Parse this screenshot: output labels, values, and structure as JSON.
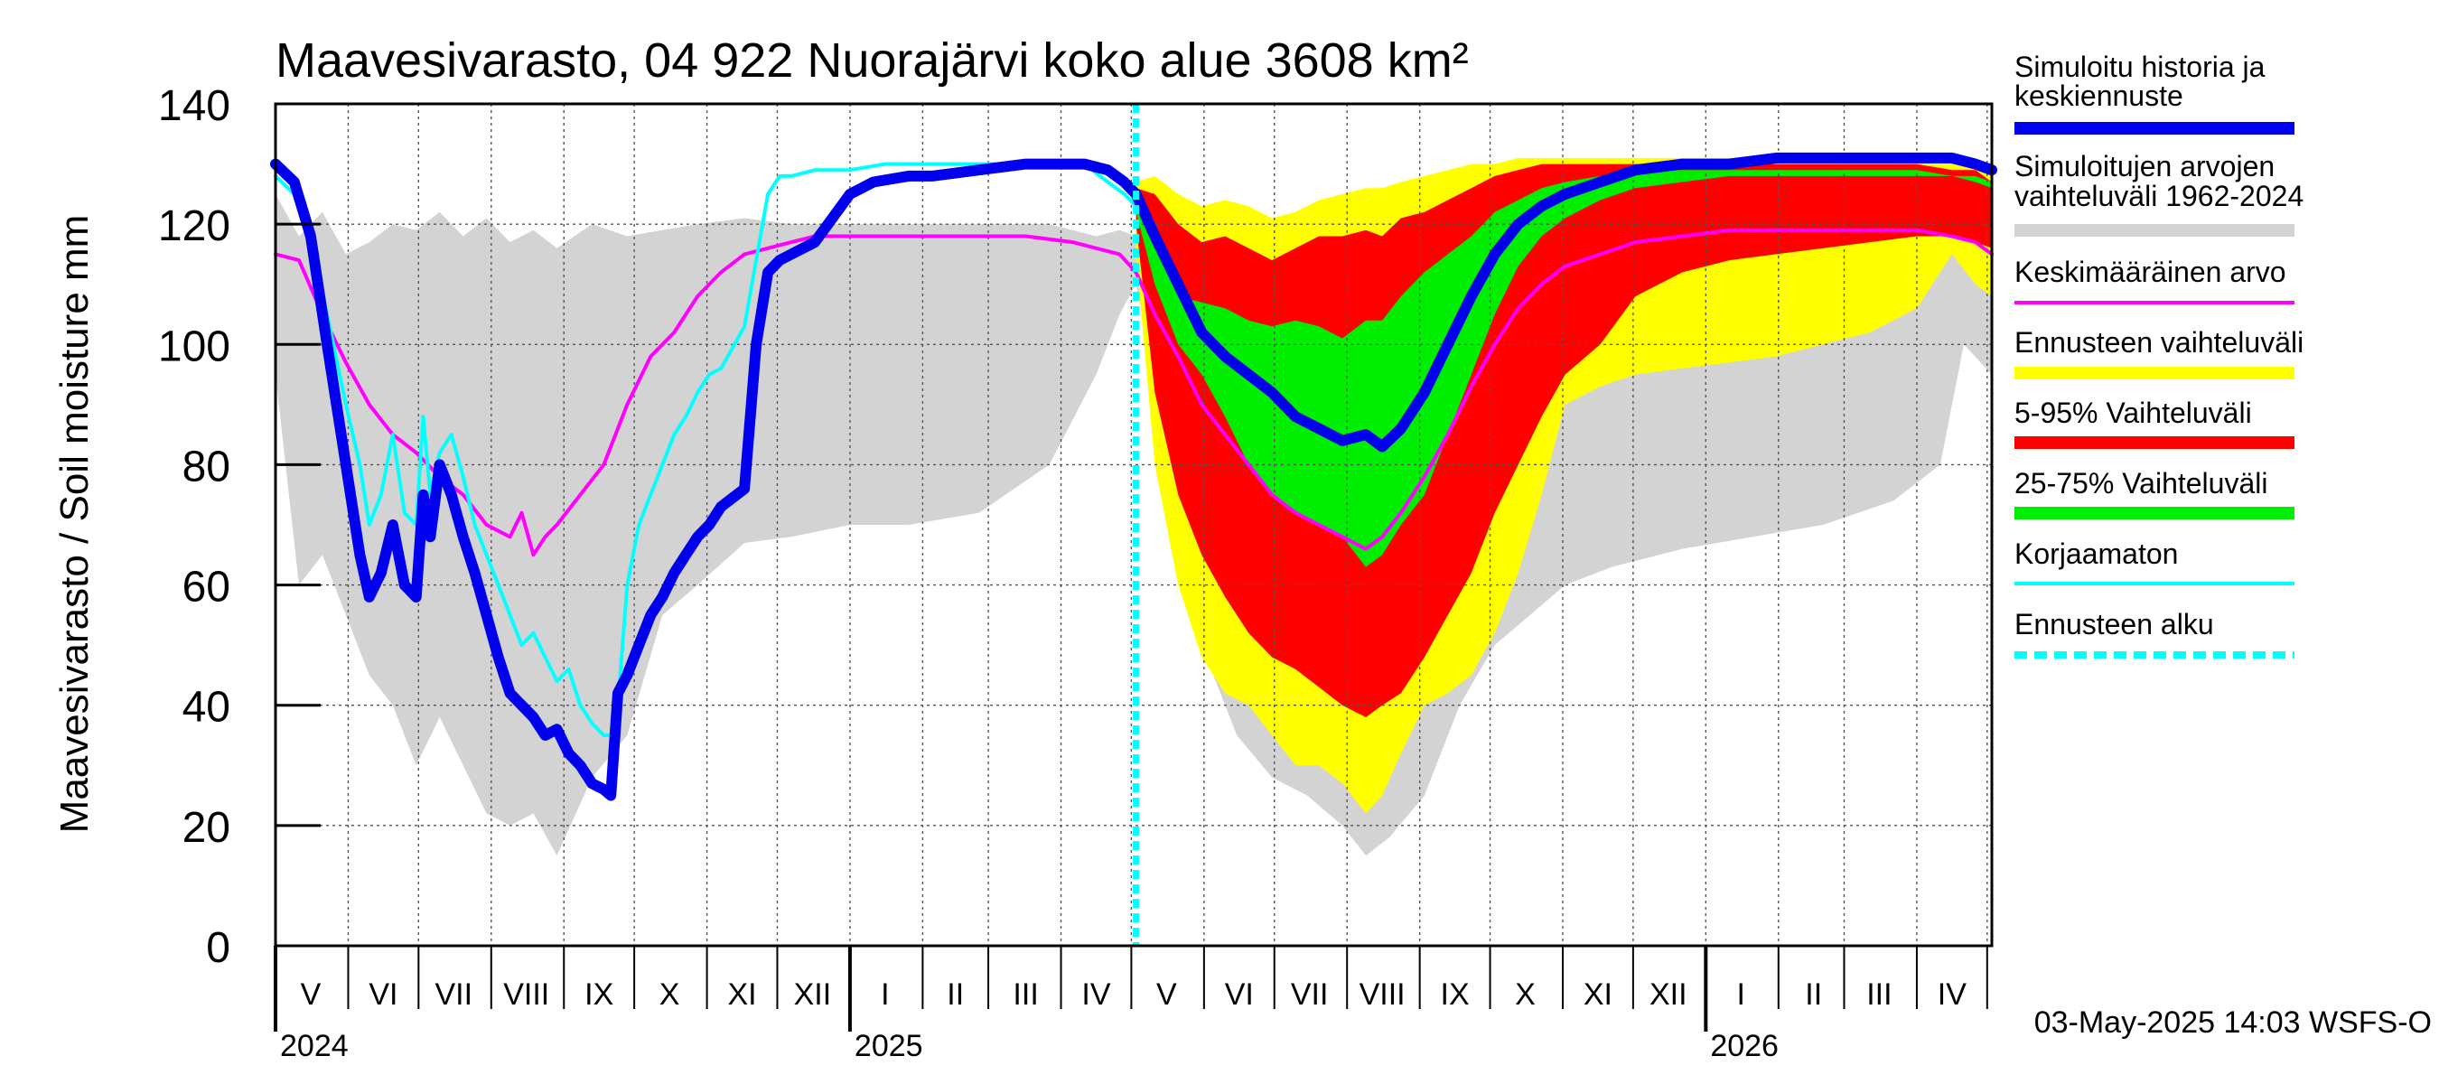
{
  "chart_data": {
    "type": "area",
    "title": "Maavesivarasto, 04 922 Nuorajärvi koko alue 3608 km²",
    "ylabel": "Maavesivarasto / Soil moisture   mm",
    "xlabel": "",
    "ylim": [
      0,
      140
    ],
    "yticks": [
      "0",
      "20",
      "40",
      "60",
      "80",
      "100",
      "120",
      "140"
    ],
    "x_range_days": [
      0,
      732
    ],
    "forecast_start_day": 367,
    "month_labels": [
      {
        "label": "V",
        "day": 15
      },
      {
        "label": "VI",
        "day": 46
      },
      {
        "label": "VII",
        "day": 76
      },
      {
        "label": "VIII",
        "day": 107
      },
      {
        "label": "IX",
        "day": 138
      },
      {
        "label": "X",
        "day": 168
      },
      {
        "label": "XI",
        "day": 199
      },
      {
        "label": "XII",
        "day": 229
      },
      {
        "label": "I",
        "day": 260
      },
      {
        "label": "II",
        "day": 290
      },
      {
        "label": "III",
        "day": 320
      },
      {
        "label": "IV",
        "day": 350
      },
      {
        "label": "V",
        "day": 380
      },
      {
        "label": "VI",
        "day": 411
      },
      {
        "label": "VII",
        "day": 441
      },
      {
        "label": "VIII",
        "day": 472
      },
      {
        "label": "IX",
        "day": 503
      },
      {
        "label": "X",
        "day": 533
      },
      {
        "label": "XI",
        "day": 564
      },
      {
        "label": "XII",
        "day": 594
      },
      {
        "label": "I",
        "day": 625
      },
      {
        "label": "II",
        "day": 656
      },
      {
        "label": "III",
        "day": 684
      },
      {
        "label": "IV",
        "day": 715
      }
    ],
    "month_boundaries": [
      0,
      31,
      61,
      92,
      123,
      153,
      184,
      214,
      245,
      276,
      304,
      335,
      365,
      396,
      426,
      457,
      488,
      518,
      549,
      579,
      610,
      641,
      669,
      700,
      730
    ],
    "year_boundaries": [
      {
        "label": "2024",
        "day": 0
      },
      {
        "label": "2025",
        "day": 245
      },
      {
        "label": "2026",
        "day": 610
      }
    ],
    "series": [
      {
        "name": "Simuloitujen arvojen vaihteluväli 1962-2024",
        "kind": "band",
        "color": "#d3d3d3",
        "x": [
          0,
          10,
          20,
          30,
          40,
          50,
          60,
          70,
          80,
          90,
          100,
          110,
          120,
          135,
          150,
          165,
          180,
          200,
          220,
          245,
          270,
          300,
          330,
          350,
          360,
          367,
          380,
          395,
          410,
          425,
          440,
          455,
          465,
          475,
          490,
          505,
          520,
          535,
          550,
          570,
          600,
          630,
          660,
          690,
          710,
          720,
          732
        ],
        "lower": [
          95,
          60,
          65,
          55,
          45,
          40,
          30,
          38,
          30,
          22,
          20,
          22,
          15,
          28,
          35,
          55,
          60,
          67,
          68,
          70,
          70,
          72,
          80,
          95,
          105,
          110,
          85,
          50,
          35,
          28,
          25,
          20,
          15,
          18,
          25,
          40,
          50,
          55,
          60,
          63,
          66,
          68,
          70,
          74,
          80,
          100,
          95
        ],
        "upper": [
          125,
          118,
          122,
          115,
          117,
          120,
          119,
          122,
          118,
          121,
          117,
          119,
          116,
          120,
          118,
          119,
          120,
          121,
          120,
          120,
          120,
          120,
          120,
          118,
          119,
          118,
          120,
          118,
          119,
          120,
          118,
          119,
          120,
          119,
          121,
          120,
          119,
          120,
          120,
          121,
          121,
          121,
          121,
          121,
          120,
          121,
          120
        ]
      },
      {
        "name": "Ennusteen vaihteluväli",
        "kind": "band",
        "color": "#ffff00",
        "x": [
          367,
          375,
          385,
          395,
          405,
          415,
          425,
          435,
          445,
          455,
          465,
          472,
          480,
          490,
          500,
          510,
          520,
          530,
          540,
          550,
          565,
          580,
          600,
          620,
          640,
          660,
          680,
          700,
          715,
          725,
          732
        ],
        "lower": [
          115,
          80,
          60,
          48,
          42,
          40,
          35,
          30,
          30,
          27,
          22,
          25,
          32,
          40,
          42,
          45,
          52,
          62,
          75,
          90,
          93,
          95,
          96,
          97,
          98,
          100,
          102,
          106,
          115,
          110,
          108
        ],
        "upper": [
          127,
          128,
          125,
          123,
          124,
          123,
          121,
          122,
          124,
          125,
          126,
          126,
          127,
          128,
          129,
          130,
          130,
          131,
          131,
          131,
          131,
          131,
          131,
          131,
          131,
          131,
          131,
          131,
          131,
          130,
          129
        ]
      },
      {
        "name": "5-95% Vaihteluväli",
        "kind": "band",
        "color": "#ff0000",
        "x": [
          367,
          375,
          385,
          395,
          405,
          415,
          425,
          435,
          445,
          455,
          465,
          472,
          480,
          490,
          500,
          510,
          520,
          530,
          540,
          550,
          565,
          580,
          600,
          620,
          640,
          660,
          680,
          700,
          715,
          725,
          732
        ],
        "lower": [
          120,
          92,
          75,
          65,
          58,
          52,
          48,
          46,
          43,
          40,
          38,
          40,
          42,
          48,
          55,
          62,
          72,
          80,
          88,
          95,
          100,
          108,
          112,
          114,
          115,
          116,
          117,
          118,
          118,
          117,
          116
        ],
        "upper": [
          126,
          125,
          120,
          117,
          118,
          116,
          114,
          116,
          118,
          118,
          119,
          118,
          121,
          122,
          124,
          126,
          128,
          129,
          130,
          130,
          130,
          130,
          130,
          130,
          130,
          130,
          130,
          130,
          129,
          129,
          127
        ]
      },
      {
        "name": "25-75% Vaihteluväli",
        "kind": "band",
        "color": "#00ee00",
        "x": [
          367,
          375,
          385,
          395,
          405,
          415,
          425,
          435,
          445,
          455,
          465,
          472,
          480,
          490,
          500,
          510,
          520,
          530,
          540,
          550,
          565,
          580,
          600,
          620,
          640,
          660,
          680,
          700,
          715,
          725,
          732
        ],
        "lower": [
          122,
          110,
          100,
          95,
          88,
          80,
          75,
          72,
          70,
          68,
          63,
          65,
          70,
          75,
          85,
          95,
          105,
          113,
          118,
          121,
          124,
          126,
          127,
          128,
          128,
          128,
          128,
          128,
          128,
          127,
          126
        ],
        "upper": [
          125,
          118,
          108,
          107,
          106,
          104,
          103,
          104,
          103,
          101,
          104,
          104,
          108,
          112,
          115,
          118,
          122,
          124,
          126,
          127,
          128,
          129,
          129,
          129,
          129,
          129,
          129,
          129,
          128,
          128,
          127
        ]
      },
      {
        "name": "Keskimääräinen arvo",
        "kind": "line",
        "color": "#ff00ff",
        "width": 4,
        "x": [
          0,
          10,
          20,
          30,
          40,
          50,
          60,
          70,
          80,
          90,
          100,
          105,
          110,
          115,
          120,
          130,
          140,
          150,
          160,
          170,
          180,
          190,
          200,
          210,
          220,
          230,
          245,
          260,
          280,
          300,
          320,
          340,
          350,
          360,
          367,
          375,
          385,
          395,
          405,
          415,
          425,
          435,
          445,
          455,
          465,
          472,
          480,
          490,
          500,
          510,
          520,
          530,
          540,
          550,
          565,
          580,
          600,
          620,
          640,
          660,
          680,
          700,
          715,
          725,
          732
        ],
        "y": [
          115,
          114,
          105,
          97,
          90,
          85,
          82,
          78,
          75,
          70,
          68,
          72,
          65,
          68,
          70,
          75,
          80,
          90,
          98,
          102,
          108,
          112,
          115,
          116,
          117,
          118,
          118,
          118,
          118,
          118,
          118,
          117,
          116,
          115,
          112,
          105,
          98,
          90,
          85,
          80,
          75,
          72,
          70,
          68,
          66,
          68,
          72,
          78,
          85,
          93,
          100,
          106,
          110,
          113,
          115,
          117,
          118,
          119,
          119,
          119,
          119,
          119,
          118,
          117,
          115
        ]
      },
      {
        "name": "Korjaamaton",
        "kind": "line",
        "color": "#00ffff",
        "width": 4,
        "x": [
          0,
          8,
          15,
          22,
          30,
          36,
          40,
          45,
          50,
          55,
          60,
          63,
          66,
          70,
          75,
          80,
          85,
          90,
          95,
          100,
          105,
          110,
          115,
          120,
          125,
          130,
          135,
          140,
          145,
          150,
          155,
          160,
          165,
          170,
          175,
          180,
          185,
          190,
          200,
          210,
          215,
          220,
          230,
          245,
          260,
          280,
          300,
          320,
          335,
          345,
          355,
          362,
          367
        ],
        "y": [
          128,
          125,
          118,
          105,
          90,
          80,
          70,
          75,
          85,
          72,
          70,
          88,
          75,
          82,
          85,
          78,
          70,
          65,
          60,
          55,
          50,
          52,
          48,
          44,
          46,
          40,
          37,
          35,
          35,
          60,
          70,
          75,
          80,
          85,
          88,
          92,
          95,
          96,
          103,
          125,
          128,
          128,
          129,
          129,
          130,
          130,
          130,
          130,
          130,
          130,
          127,
          125,
          123
        ]
      },
      {
        "name": "Simuloitu historia ja keskiennuste",
        "kind": "line",
        "color": "#0000ee",
        "width": 12,
        "x": [
          0,
          8,
          15,
          22,
          30,
          36,
          40,
          45,
          50,
          55,
          60,
          63,
          66,
          70,
          75,
          80,
          85,
          90,
          95,
          100,
          105,
          110,
          115,
          120,
          125,
          130,
          135,
          140,
          143,
          146,
          150,
          155,
          160,
          165,
          170,
          175,
          180,
          185,
          190,
          200,
          205,
          210,
          215,
          220,
          230,
          245,
          255,
          270,
          280,
          300,
          320,
          335,
          345,
          355,
          362,
          367,
          375,
          385,
          395,
          405,
          415,
          425,
          435,
          445,
          455,
          465,
          472,
          480,
          490,
          500,
          510,
          520,
          530,
          540,
          550,
          565,
          580,
          600,
          620,
          640,
          660,
          680,
          700,
          715,
          725,
          732
        ],
        "y": [
          130,
          127,
          118,
          100,
          80,
          65,
          58,
          62,
          70,
          60,
          58,
          75,
          68,
          80,
          75,
          68,
          62,
          55,
          48,
          42,
          40,
          38,
          35,
          36,
          32,
          30,
          27,
          26,
          25,
          42,
          45,
          50,
          55,
          58,
          62,
          65,
          68,
          70,
          73,
          76,
          100,
          112,
          114,
          115,
          117,
          125,
          127,
          128,
          128,
          129,
          130,
          130,
          130,
          129,
          127,
          125,
          118,
          110,
          102,
          98,
          95,
          92,
          88,
          86,
          84,
          85,
          83,
          86,
          92,
          100,
          108,
          115,
          120,
          123,
          125,
          127,
          129,
          130,
          130,
          131,
          131,
          131,
          131,
          131,
          130,
          129
        ]
      }
    ],
    "forecast_start_label": "Ennusteen alku",
    "legend": [
      {
        "label": "Simuloitu historia ja keskiennuste",
        "color": "#0000ee",
        "style": "thick"
      },
      {
        "label": "Simuloitujen arvojen vaihteluväli 1962-2024",
        "color": "#d3d3d3",
        "style": "thick"
      },
      {
        "label": "Keskimääräinen arvo",
        "color": "#ff00ff",
        "style": "thin"
      },
      {
        "label": "Ennusteen vaihteluväli",
        "color": "#ffff00",
        "style": "thick"
      },
      {
        "label": "5-95% Vaihteluväli",
        "color": "#ff0000",
        "style": "thick"
      },
      {
        "label": "25-75% Vaihteluväli",
        "color": "#00ee00",
        "style": "thick"
      },
      {
        "label": "Korjaamaton",
        "color": "#00ffff",
        "style": "thin"
      },
      {
        "label": "Ennusteen alku",
        "color": "#00ffff",
        "style": "dashed"
      }
    ],
    "timestamp": "03-May-2025 14:03 WSFS-O"
  }
}
